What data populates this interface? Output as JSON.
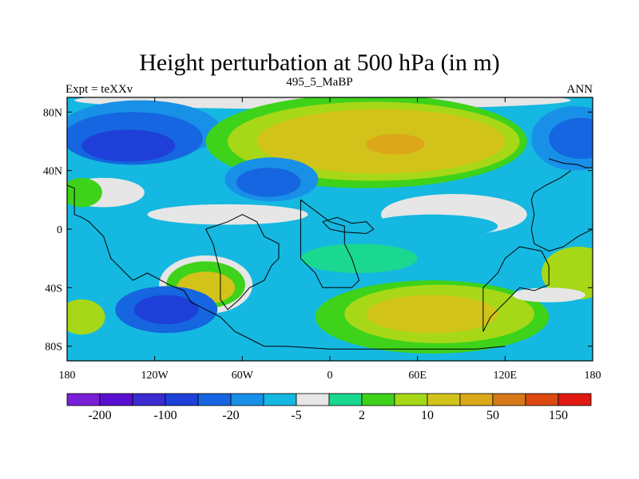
{
  "chart_data": {
    "type": "heatmap",
    "title": "Height perturbation at 500 hPa (in m)",
    "left_label": "Expt = teXXv",
    "center_label": "495_5_MaBP",
    "right_label": "ANN",
    "x_ticks": [
      {
        "value": -180,
        "label": "180"
      },
      {
        "value": -120,
        "label": "120W"
      },
      {
        "value": -60,
        "label": "60W"
      },
      {
        "value": 0,
        "label": "0"
      },
      {
        "value": 60,
        "label": "60E"
      },
      {
        "value": 120,
        "label": "120E"
      },
      {
        "value": 180,
        "label": "180"
      }
    ],
    "y_ticks": [
      {
        "value": 80,
        "label": "80N"
      },
      {
        "value": 40,
        "label": "40N"
      },
      {
        "value": 0,
        "label": "0"
      },
      {
        "value": -40,
        "label": "40S"
      },
      {
        "value": -80,
        "label": "80S"
      }
    ],
    "xlim": [
      -180,
      180
    ],
    "ylim": [
      -90,
      90
    ],
    "colorbar": {
      "colors": [
        "#7a1fd8",
        "#5a0fd0",
        "#3a2ad0",
        "#1e40d8",
        "#1566e0",
        "#1890e8",
        "#15b8e0",
        "#e6e6e6",
        "#1ad890",
        "#3ed21a",
        "#a6d818",
        "#d2c31a",
        "#dca81a",
        "#d4781a",
        "#dc4a12",
        "#e01a12"
      ],
      "labels": [
        {
          "boundary": 1,
          "text": "-200"
        },
        {
          "boundary": 3,
          "text": "-100"
        },
        {
          "boundary": 5,
          "text": "-20"
        },
        {
          "boundary": 7,
          "text": "-5"
        },
        {
          "boundary": 9,
          "text": "2"
        },
        {
          "boundary": 11,
          "text": "10"
        },
        {
          "boundary": 13,
          "text": "50"
        },
        {
          "boundary": 15,
          "text": "150"
        }
      ]
    },
    "features": [
      {
        "name": "arctic-gray",
        "lon": -5,
        "lat": 88,
        "rx": 170,
        "ry": 6,
        "level": 7
      },
      {
        "name": "ne-pacific-trough-1",
        "lon": -130,
        "lat": 68,
        "rx": 55,
        "ry": 20,
        "level": 5
      },
      {
        "name": "ne-pacific-trough-2",
        "lon": -135,
        "lat": 62,
        "rx": 48,
        "ry": 18,
        "level": 4
      },
      {
        "name": "ne-pacific-trough-3",
        "lon": -138,
        "lat": 57,
        "rx": 32,
        "ry": 11,
        "level": 3
      },
      {
        "name": "subtropic-pacific-gray",
        "lon": -155,
        "lat": 25,
        "rx": 28,
        "ry": 10,
        "level": 7
      },
      {
        "name": "west-pacific-green",
        "lon": -170,
        "lat": 25,
        "rx": 14,
        "ry": 10,
        "level": 9
      },
      {
        "name": "na-atlantic-ridge-outer",
        "lon": 25,
        "lat": 60,
        "rx": 110,
        "ry": 32,
        "level": 9
      },
      {
        "name": "na-atlantic-ridge-mid",
        "lon": 30,
        "lat": 60,
        "rx": 100,
        "ry": 27,
        "level": 10
      },
      {
        "name": "na-atlantic-ridge-inner",
        "lon": 35,
        "lat": 60,
        "rx": 85,
        "ry": 22,
        "level": 11
      },
      {
        "name": "eurasia-high",
        "lon": 45,
        "lat": 58,
        "rx": 20,
        "ry": 7,
        "level": 12
      },
      {
        "name": "north-atlantic-low-1",
        "lon": -40,
        "lat": 34,
        "rx": 32,
        "ry": 15,
        "level": 5
      },
      {
        "name": "north-atlantic-low-2",
        "lon": -42,
        "lat": 32,
        "rx": 22,
        "ry": 10,
        "level": 4
      },
      {
        "name": "siberia-low-1",
        "lon": 168,
        "lat": 62,
        "rx": 30,
        "ry": 22,
        "level": 5
      },
      {
        "name": "siberia-low-2",
        "lon": 172,
        "lat": 62,
        "rx": 22,
        "ry": 14,
        "level": 4
      },
      {
        "name": "tropical-white-band",
        "lon": -70,
        "lat": 10,
        "rx": 55,
        "ry": 7,
        "level": 7
      },
      {
        "name": "indian-ocean-white",
        "lon": 85,
        "lat": 10,
        "rx": 50,
        "ry": 14,
        "level": 7
      },
      {
        "name": "indian-ocean-cyan",
        "lon": 70,
        "lat": 2,
        "rx": 45,
        "ry": 8,
        "level": 6
      },
      {
        "name": "south-america-high-outer",
        "lon": -85,
        "lat": -38,
        "rx": 32,
        "ry": 20,
        "level": 7
      },
      {
        "name": "south-america-high-mid",
        "lon": -85,
        "lat": -38,
        "rx": 27,
        "ry": 16,
        "level": 9
      },
      {
        "name": "south-america-high-inner",
        "lon": -85,
        "lat": -40,
        "rx": 20,
        "ry": 11,
        "level": 11
      },
      {
        "name": "south-pacific-low-1",
        "lon": -112,
        "lat": -55,
        "rx": 35,
        "ry": 16,
        "level": 4
      },
      {
        "name": "south-pacific-low-2",
        "lon": -112,
        "lat": -55,
        "rx": 22,
        "ry": 10,
        "level": 3
      },
      {
        "name": "southern-ocean-high-outer",
        "lon": 70,
        "lat": -60,
        "rx": 80,
        "ry": 25,
        "level": 9
      },
      {
        "name": "southern-ocean-high-mid",
        "lon": 75,
        "lat": -58,
        "rx": 65,
        "ry": 20,
        "level": 10
      },
      {
        "name": "southern-ocean-high-inner",
        "lon": 70,
        "lat": -58,
        "rx": 45,
        "ry": 13,
        "level": 11
      },
      {
        "name": "south-pacific-east-high",
        "lon": 170,
        "lat": -30,
        "rx": 25,
        "ry": 18,
        "level": 10
      },
      {
        "name": "tasman-white",
        "lon": 150,
        "lat": -45,
        "rx": 25,
        "ry": 5,
        "level": 7
      },
      {
        "name": "sw-pacific-high",
        "lon": -170,
        "lat": -60,
        "rx": 16,
        "ry": 12,
        "level": 10
      },
      {
        "name": "atlantic-green-south",
        "lon": 20,
        "lat": -20,
        "rx": 40,
        "ry": 10,
        "level": 8
      }
    ],
    "coast": [
      [
        [
          -180,
          30
        ],
        [
          -175,
          28
        ],
        [
          -175,
          10
        ],
        [
          -170,
          8
        ],
        [
          -165,
          5
        ],
        [
          -160,
          0
        ],
        [
          -155,
          -5
        ],
        [
          -150,
          -20
        ],
        [
          -145,
          -25
        ],
        [
          -140,
          -30
        ],
        [
          -135,
          -35
        ],
        [
          -125,
          -30
        ],
        [
          -110,
          -38
        ],
        [
          -100,
          -42
        ],
        [
          -95,
          -50
        ],
        [
          -85,
          -55
        ],
        [
          -75,
          -60
        ],
        [
          -65,
          -70
        ],
        [
          -55,
          -75
        ],
        [
          -45,
          -80
        ],
        [
          -30,
          -80
        ],
        [
          0,
          -82
        ],
        [
          30,
          -82
        ],
        [
          60,
          -82
        ],
        [
          100,
          -82
        ],
        [
          120,
          -80
        ]
      ],
      [
        [
          -85,
          0
        ],
        [
          -70,
          5
        ],
        [
          -60,
          10
        ],
        [
          -50,
          5
        ],
        [
          -45,
          -5
        ],
        [
          -35,
          -10
        ],
        [
          -35,
          -20
        ],
        [
          -40,
          -25
        ],
        [
          -45,
          -35
        ],
        [
          -55,
          -40
        ],
        [
          -62,
          -48
        ],
        [
          -70,
          -55
        ],
        [
          -75,
          -48
        ],
        [
          -75,
          -30
        ],
        [
          -80,
          -10
        ],
        [
          -85,
          0
        ]
      ],
      [
        [
          -20,
          20
        ],
        [
          0,
          5
        ],
        [
          10,
          2
        ],
        [
          10,
          -10
        ],
        [
          15,
          -20
        ],
        [
          20,
          -35
        ],
        [
          15,
          -40
        ],
        [
          -5,
          -40
        ],
        [
          -10,
          -30
        ],
        [
          -20,
          -20
        ],
        [
          -20,
          20
        ]
      ],
      [
        [
          105,
          -40
        ],
        [
          115,
          -30
        ],
        [
          120,
          -20
        ],
        [
          130,
          -12
        ],
        [
          145,
          -15
        ],
        [
          150,
          -25
        ],
        [
          150,
          -38
        ],
        [
          140,
          -42
        ],
        [
          130,
          -40
        ],
        [
          120,
          -50
        ],
        [
          110,
          -60
        ],
        [
          105,
          -70
        ],
        [
          105,
          -40
        ]
      ],
      [
        [
          165,
          40
        ],
        [
          158,
          35
        ],
        [
          148,
          30
        ],
        [
          140,
          25
        ],
        [
          138,
          20
        ],
        [
          140,
          10
        ],
        [
          138,
          0
        ],
        [
          140,
          -10
        ],
        [
          150,
          -15
        ],
        [
          160,
          -12
        ],
        [
          170,
          -5
        ],
        [
          180,
          0
        ]
      ],
      [
        [
          -5,
          5
        ],
        [
          5,
          8
        ],
        [
          15,
          4
        ],
        [
          25,
          5
        ],
        [
          30,
          0
        ],
        [
          25,
          -3
        ],
        [
          10,
          -2
        ],
        [
          0,
          0
        ],
        [
          -5,
          5
        ]
      ],
      [
        [
          150,
          48
        ],
        [
          160,
          45
        ],
        [
          170,
          44
        ],
        [
          175,
          42
        ],
        [
          180,
          42
        ]
      ]
    ]
  }
}
